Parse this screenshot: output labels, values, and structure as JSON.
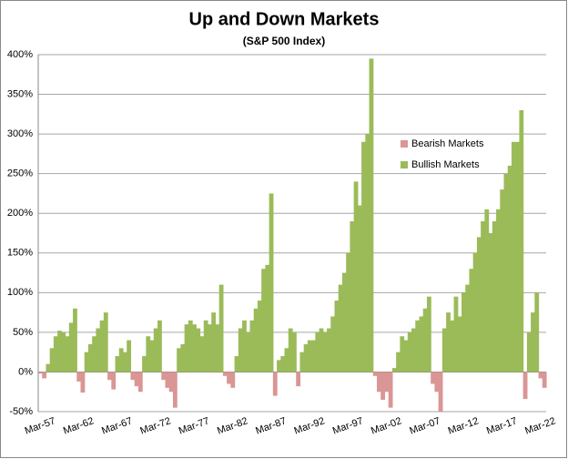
{
  "chart_data": {
    "type": "bar",
    "title": "Up and Down Markets",
    "subtitle": "(S&P 500 Index)",
    "categories": [
      "Mar-57",
      null,
      null,
      null,
      null,
      null,
      null,
      null,
      null,
      null,
      "Mar-62",
      null,
      null,
      null,
      null,
      null,
      null,
      null,
      null,
      null,
      "Mar-67",
      null,
      null,
      null,
      null,
      null,
      null,
      null,
      null,
      null,
      "Mar-72",
      null,
      null,
      null,
      null,
      null,
      null,
      null,
      null,
      null,
      "Mar-77",
      null,
      null,
      null,
      null,
      null,
      null,
      null,
      null,
      null,
      "Mar-82",
      null,
      null,
      null,
      null,
      null,
      null,
      null,
      null,
      null,
      "Mar-87",
      null,
      null,
      null,
      null,
      null,
      null,
      null,
      null,
      null,
      "Mar-92",
      null,
      null,
      null,
      null,
      null,
      null,
      null,
      null,
      null,
      "Mar-97",
      null,
      null,
      null,
      null,
      null,
      null,
      null,
      null,
      null,
      "Mar-02",
      null,
      null,
      null,
      null,
      null,
      null,
      null,
      null,
      null,
      "Mar-07",
      null,
      null,
      null,
      null,
      null,
      null,
      null,
      null,
      null,
      "Mar-12",
      null,
      null,
      null,
      null,
      null,
      null,
      null,
      null,
      null,
      "Mar-17",
      null,
      null,
      null,
      null,
      null,
      null,
      null,
      null,
      null,
      "Mar-22",
      null
    ],
    "series": [
      {
        "name": "Bearish Markets",
        "color": "#d99694",
        "values": [
          -2,
          -8,
          null,
          null,
          null,
          null,
          null,
          null,
          null,
          null,
          -12,
          -26,
          null,
          null,
          null,
          null,
          null,
          null,
          -10,
          -22,
          null,
          null,
          null,
          null,
          -10,
          -18,
          -25,
          null,
          null,
          null,
          null,
          null,
          -10,
          -20,
          -25,
          -45,
          null,
          null,
          null,
          null,
          null,
          null,
          null,
          null,
          null,
          null,
          null,
          null,
          -5,
          -15,
          -20,
          null,
          null,
          null,
          null,
          null,
          null,
          null,
          null,
          null,
          null,
          -30,
          null,
          null,
          null,
          null,
          null,
          -18,
          null,
          null,
          null,
          null,
          null,
          null,
          null,
          null,
          null,
          null,
          null,
          null,
          null,
          null,
          null,
          null,
          null,
          null,
          null,
          -5,
          -25,
          -35,
          -25,
          -45,
          null,
          null,
          null,
          null,
          null,
          null,
          null,
          null,
          null,
          null,
          -15,
          -25,
          -50,
          null,
          null,
          null,
          null,
          null,
          null,
          null,
          null,
          null,
          null,
          null,
          null,
          null,
          null,
          null,
          null,
          null,
          null,
          null,
          null,
          null,
          -34,
          null,
          null,
          null,
          -8,
          -20
        ]
      },
      {
        "name": "Bullish Markets",
        "color": "#9bbb59",
        "values": [
          null,
          null,
          10,
          30,
          45,
          52,
          50,
          45,
          62,
          80,
          null,
          null,
          25,
          35,
          45,
          55,
          65,
          75,
          null,
          null,
          20,
          30,
          25,
          40,
          null,
          null,
          null,
          20,
          45,
          40,
          55,
          65,
          null,
          null,
          null,
          null,
          30,
          35,
          60,
          65,
          60,
          55,
          45,
          65,
          60,
          75,
          60,
          110,
          null,
          null,
          null,
          20,
          55,
          65,
          50,
          65,
          80,
          90,
          130,
          135,
          225,
          null,
          15,
          20,
          30,
          55,
          50,
          null,
          25,
          35,
          40,
          40,
          50,
          55,
          50,
          55,
          70,
          90,
          110,
          125,
          150,
          190,
          240,
          210,
          290,
          300,
          395,
          null,
          null,
          null,
          null,
          null,
          5,
          25,
          45,
          40,
          50,
          55,
          65,
          70,
          80,
          95,
          null,
          null,
          null,
          55,
          75,
          65,
          95,
          70,
          100,
          110,
          130,
          150,
          170,
          190,
          205,
          175,
          190,
          205,
          230,
          250,
          260,
          290,
          290,
          330,
          null,
          50,
          75,
          100,
          null,
          null
        ]
      }
    ],
    "ylim": [
      -50,
      400
    ],
    "yticks": [
      {
        "value": -50,
        "label": "-50%"
      },
      {
        "value": 0,
        "label": "0%"
      },
      {
        "value": 50,
        "label": "50%"
      },
      {
        "value": 100,
        "label": "100%"
      },
      {
        "value": 150,
        "label": "150%"
      },
      {
        "value": 200,
        "label": "200%"
      },
      {
        "value": 250,
        "label": "250%"
      },
      {
        "value": 300,
        "label": "300%"
      },
      {
        "value": 350,
        "label": "350%"
      },
      {
        "value": 400,
        "label": "400%"
      }
    ],
    "grid": true
  }
}
